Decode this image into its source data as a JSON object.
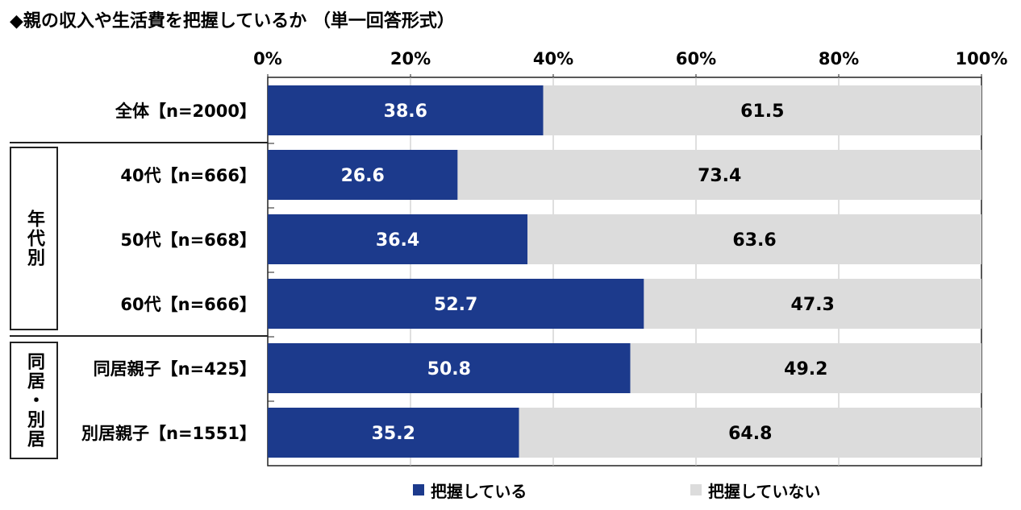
{
  "title": "◆親の収入や生活費を把握しているか （単一回答形式）",
  "groups": [
    {
      "label": "年代別"
    },
    {
      "label": "同居・別居"
    }
  ],
  "legend": [
    {
      "label": "把握している",
      "color": "#1c3a8c"
    },
    {
      "label": "把握していない",
      "color": "#dcdcdc"
    }
  ],
  "chart_data": {
    "type": "bar",
    "orientation": "horizontal",
    "stacked": true,
    "categories": [
      "全体【n=2000】",
      "40代【n=666】",
      "50代【n=668】",
      "60代【n=666】",
      "同居親子【n=425】",
      "別居親子【n=1551】"
    ],
    "series": [
      {
        "name": "把握している",
        "values": [
          38.6,
          26.6,
          36.4,
          52.7,
          50.8,
          35.2
        ],
        "color": "#1c3a8c"
      },
      {
        "name": "把握していない",
        "values": [
          61.5,
          73.4,
          63.6,
          47.3,
          49.2,
          64.8
        ],
        "color": "#dcdcdc"
      }
    ],
    "xlim": [
      0,
      100
    ],
    "x_ticks": [
      "0%",
      "20%",
      "40%",
      "60%",
      "80%",
      "100%"
    ],
    "x_tick_values": [
      0,
      20,
      40,
      60,
      80,
      100
    ],
    "grid": true,
    "legend_position": "bottom"
  }
}
